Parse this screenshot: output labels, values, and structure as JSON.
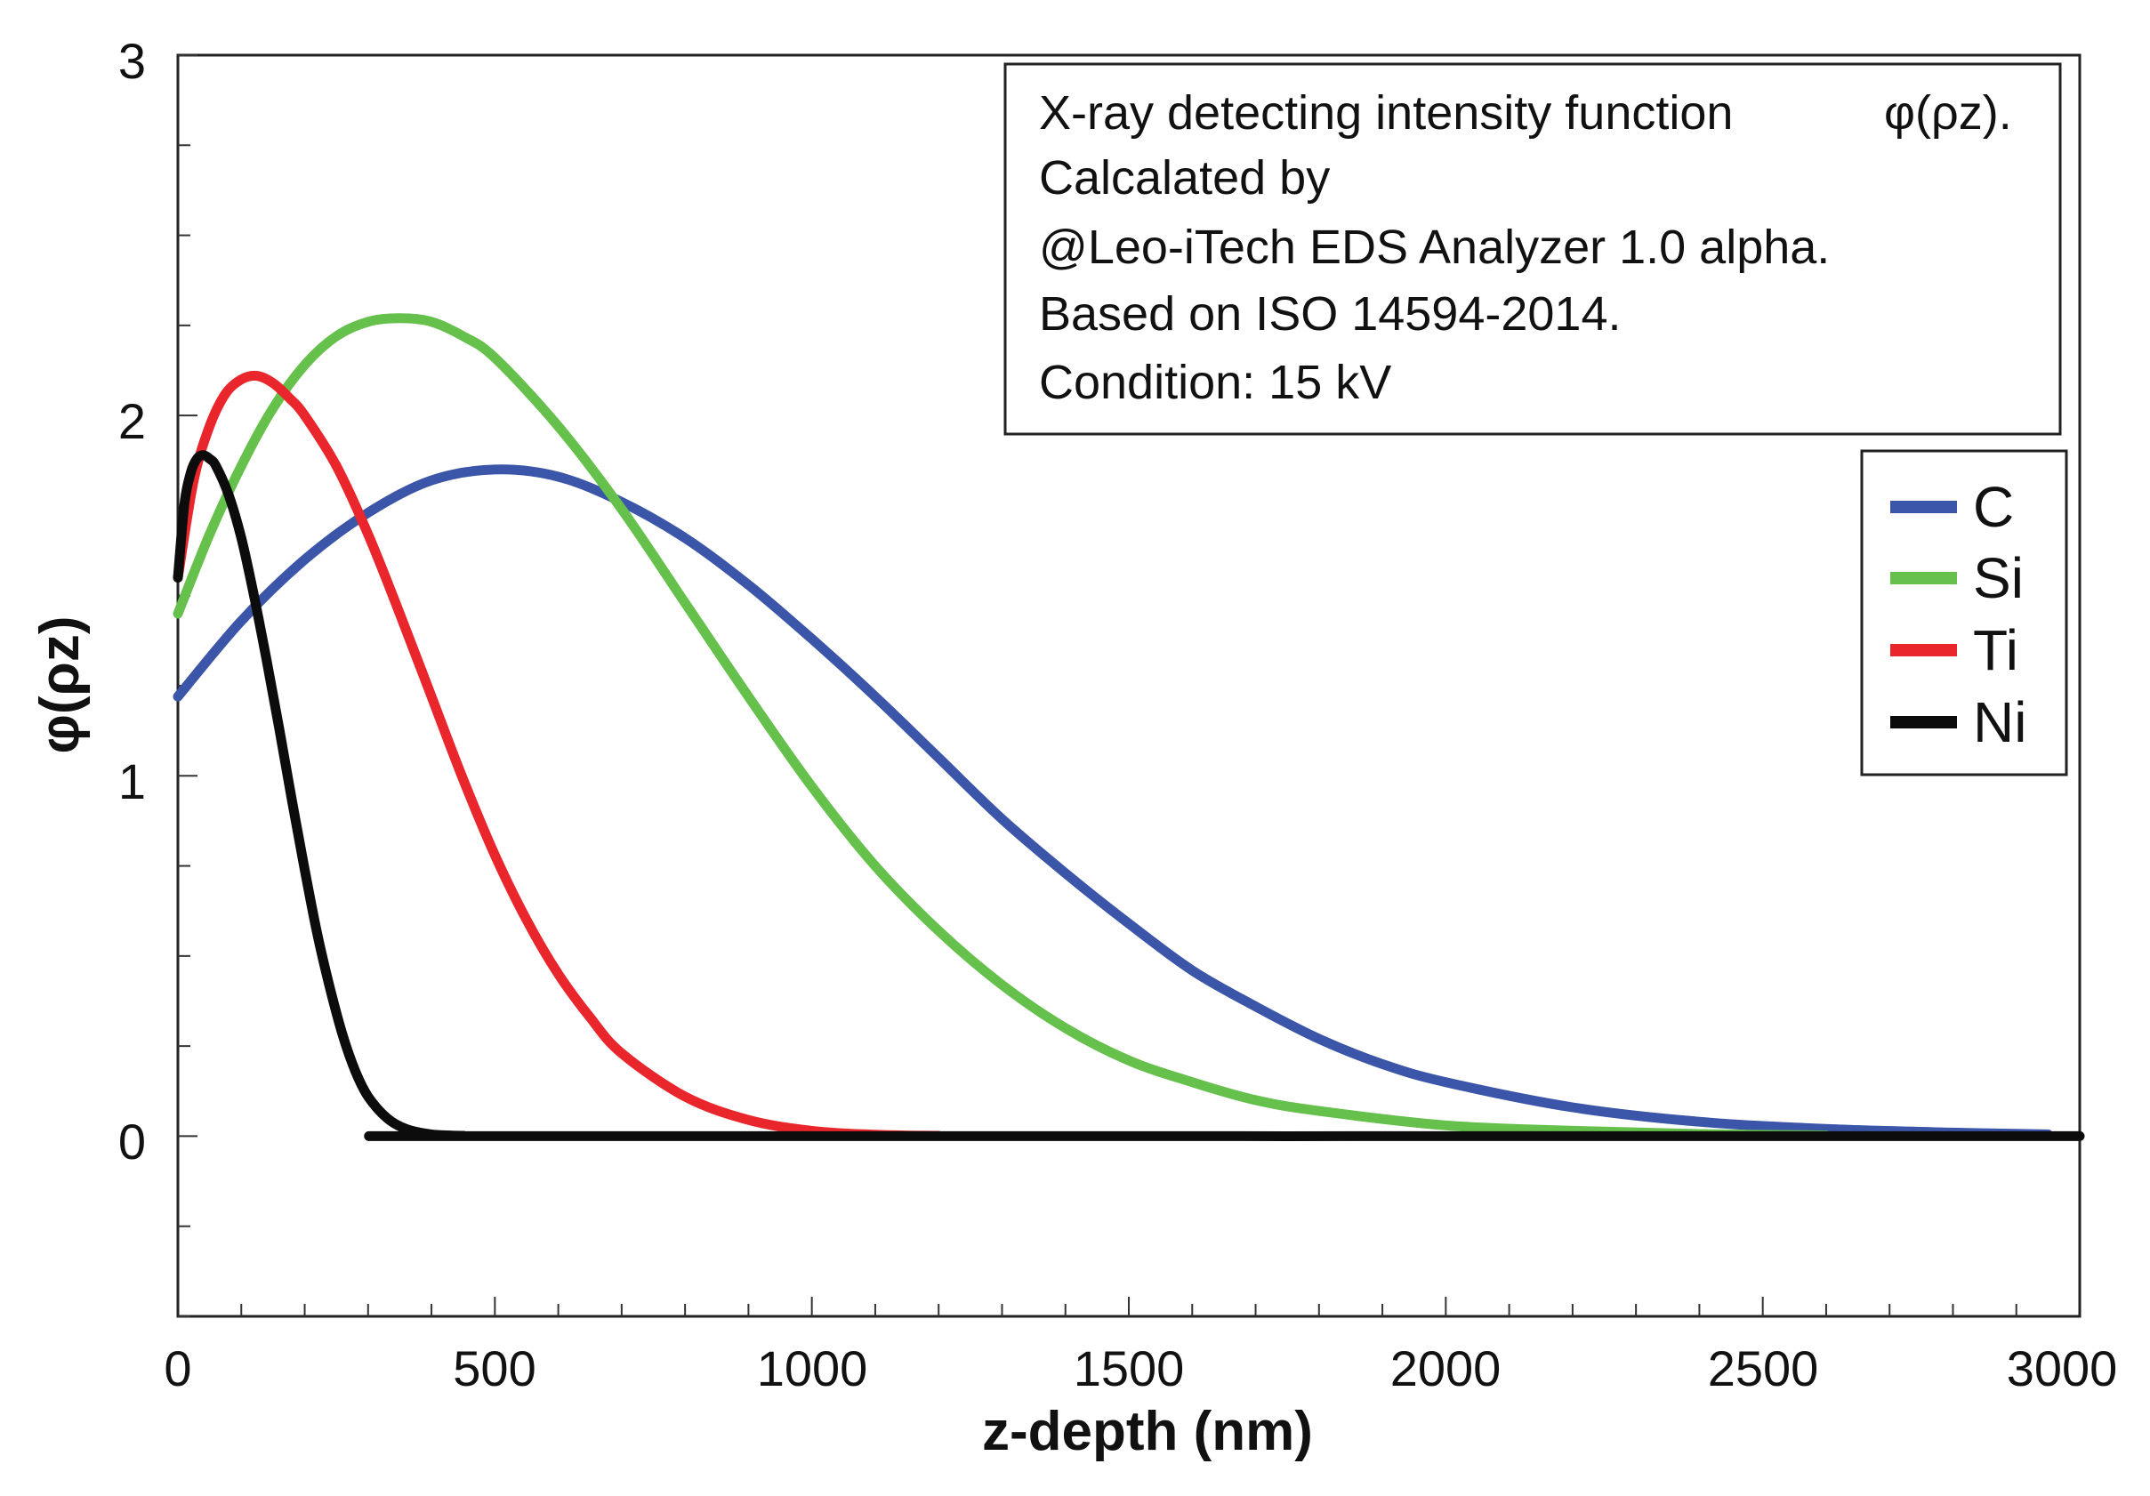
{
  "chart_data": {
    "type": "line",
    "xlabel": "z-depth (nm)",
    "ylabel": "φ(ρz)",
    "xlim": [
      0,
      3000
    ],
    "ylim": [
      -0.5,
      3
    ],
    "x_ticks": [
      "0",
      "500",
      "1000",
      "1500",
      "2000",
      "2500",
      "3000"
    ],
    "y_ticks": [
      "3",
      "2",
      "1",
      "0"
    ],
    "info_box": [
      "X-ray detecting intensity function",
      "φ(ρz).",
      "Calcalated by",
      "@Leo-iTech EDS Analyzer 1.0 alpha.",
      "Based on ISO 14594-2014.",
      "Condition: 15 kV"
    ],
    "legend_position": "right",
    "series": [
      {
        "name": "C",
        "color": "#3b55a8",
        "x": [
          0,
          100,
          200,
          300,
          400,
          500,
          600,
          700,
          800,
          900,
          1000,
          1100,
          1200,
          1300,
          1400,
          1500,
          1600,
          1700,
          1800,
          1900,
          2000,
          2200,
          2400,
          2600,
          2800,
          2950
        ],
        "values": [
          1.22,
          1.43,
          1.6,
          1.73,
          1.82,
          1.85,
          1.83,
          1.76,
          1.66,
          1.53,
          1.38,
          1.22,
          1.05,
          0.88,
          0.73,
          0.59,
          0.46,
          0.36,
          0.27,
          0.2,
          0.15,
          0.08,
          0.04,
          0.02,
          0.01,
          0.005
        ]
      },
      {
        "name": "Si",
        "color": "#66c04c",
        "x": [
          0,
          50,
          100,
          150,
          200,
          250,
          300,
          350,
          400,
          450,
          500,
          600,
          700,
          800,
          900,
          1000,
          1100,
          1200,
          1300,
          1400,
          1500,
          1600,
          1700,
          1800,
          2000,
          2200,
          2400,
          2600
        ],
        "values": [
          1.45,
          1.67,
          1.86,
          2.02,
          2.14,
          2.22,
          2.26,
          2.27,
          2.26,
          2.22,
          2.16,
          1.97,
          1.74,
          1.48,
          1.22,
          0.97,
          0.75,
          0.57,
          0.42,
          0.3,
          0.21,
          0.15,
          0.1,
          0.07,
          0.03,
          0.015,
          0.006,
          0.002
        ]
      },
      {
        "name": "Ti",
        "color": "#e8262b",
        "x": [
          0,
          25,
          50,
          75,
          100,
          125,
          150,
          175,
          200,
          250,
          300,
          350,
          400,
          450,
          500,
          550,
          600,
          650,
          700,
          800,
          900,
          1000,
          1100,
          1200
        ],
        "values": [
          1.55,
          1.82,
          1.97,
          2.06,
          2.1,
          2.11,
          2.09,
          2.05,
          2.0,
          1.86,
          1.67,
          1.45,
          1.22,
          0.99,
          0.78,
          0.6,
          0.45,
          0.33,
          0.23,
          0.11,
          0.045,
          0.015,
          0.004,
          0.001
        ]
      },
      {
        "name": "Ni",
        "color": "#0c0c0c",
        "x": [
          0,
          10,
          20,
          30,
          40,
          50,
          60,
          80,
          100,
          120,
          140,
          160,
          180,
          200,
          220,
          240,
          260,
          280,
          300,
          330,
          360,
          400,
          450,
          500,
          3000
        ],
        "values": [
          1.55,
          1.75,
          1.84,
          1.88,
          1.89,
          1.88,
          1.86,
          1.78,
          1.66,
          1.5,
          1.32,
          1.13,
          0.93,
          0.74,
          0.56,
          0.41,
          0.28,
          0.18,
          0.11,
          0.05,
          0.02,
          0.005,
          0.001,
          0.0,
          0.0
        ]
      }
    ]
  }
}
